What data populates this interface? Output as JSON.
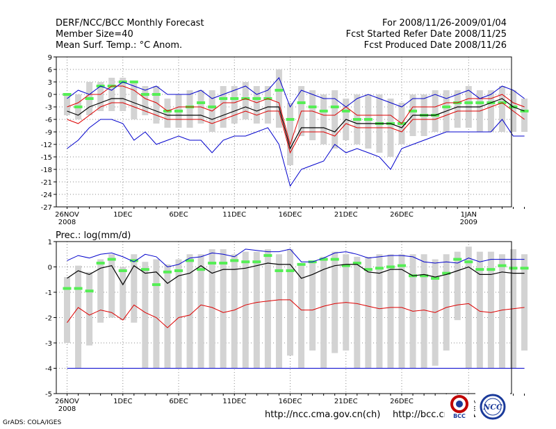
{
  "header": {
    "title": "DERF/NCC/BCC Monthly Forecast",
    "member_size": "Member Size=40",
    "variable": "Mean Surf. Temp.: °C Anom.",
    "period": "For 2008/11/26-2009/01/04",
    "started": "Fcst Started Refer Date 2008/11/25",
    "produced": "Fcst Produced Date 2008/11/26"
  },
  "footer": {
    "url1": "http://ncc.cma.gov.cn(ch)",
    "url2": "http://bcc.cma.gov.cn",
    "grads": "GrADS: COLA/IGES"
  },
  "logos": {
    "bcc": "BCC",
    "ncc": "NCC"
  },
  "colors": {
    "box": "#d3d3d3",
    "median": "#55ee55",
    "mean": "#000000",
    "inner": "#dd0000",
    "outer": "#0000cc",
    "grid": "#888888"
  },
  "chart_data": [
    {
      "type": "line",
      "title": "Mean Surf. Temp.: °C Anom.",
      "ylim": [
        -27,
        9
      ],
      "yticks": [
        9,
        6,
        3,
        0,
        -3,
        -6,
        -9,
        -12,
        -15,
        -18,
        -21,
        -24,
        -27
      ],
      "xtick_labels": [
        {
          "day": 0,
          "label": "26NOV",
          "sub": "2008"
        },
        {
          "day": 5,
          "label": "1DEC",
          "sub": ""
        },
        {
          "day": 10,
          "label": "6DEC",
          "sub": ""
        },
        {
          "day": 15,
          "label": "11DEC",
          "sub": ""
        },
        {
          "day": 20,
          "label": "16DEC",
          "sub": ""
        },
        {
          "day": 25,
          "label": "21DEC",
          "sub": ""
        },
        {
          "day": 30,
          "label": "26DEC",
          "sub": ""
        },
        {
          "day": 36,
          "label": "1JAN",
          "sub": "2009"
        }
      ],
      "series": [
        {
          "name": "max",
          "values": [
            -1,
            1,
            0,
            2,
            1,
            3,
            2,
            1,
            2,
            0,
            0,
            0,
            1,
            -1,
            0,
            1,
            2,
            0,
            1,
            4,
            -3,
            1,
            0,
            -1,
            -1,
            -3,
            -1,
            0,
            -1,
            -2,
            -3,
            -1,
            -1,
            0,
            -1,
            0,
            1,
            -1,
            0,
            2,
            1,
            -1
          ]
        },
        {
          "name": "upper",
          "values": [
            -3,
            -2,
            0,
            0,
            2,
            2,
            1,
            -1,
            -2,
            -4,
            -3,
            -3,
            -3,
            -4,
            -2,
            -2,
            -1,
            -2,
            -1,
            -2,
            -12,
            -4,
            -4,
            -5,
            -5,
            -3,
            -5,
            -5,
            -5,
            -5,
            -7,
            -3,
            -3,
            -3,
            -2,
            -2,
            -1,
            -1,
            -1,
            0,
            -2,
            -3
          ]
        },
        {
          "name": "mean",
          "values": [
            -4,
            -5,
            -3,
            -2,
            -1,
            -1,
            -2,
            -3,
            -4,
            -5,
            -5,
            -5,
            -5,
            -6,
            -5,
            -4,
            -3,
            -4,
            -3,
            -3,
            -13,
            -8,
            -8,
            -8,
            -9,
            -6,
            -7,
            -7,
            -7,
            -7,
            -8,
            -5,
            -5,
            -5,
            -4,
            -3,
            -3,
            -3,
            -2,
            -1,
            -3,
            -4
          ]
        },
        {
          "name": "lower",
          "values": [
            -6,
            -7,
            -5,
            -3,
            -2,
            -2,
            -3,
            -4,
            -5,
            -6,
            -6,
            -6,
            -6,
            -7,
            -6,
            -5,
            -4,
            -5,
            -4,
            -4,
            -14,
            -9,
            -9,
            -9,
            -10,
            -7,
            -8,
            -8,
            -8,
            -8,
            -9,
            -6,
            -6,
            -6,
            -5,
            -4,
            -4,
            -4,
            -3,
            -2,
            -4,
            -6
          ]
        },
        {
          "name": "min",
          "values": [
            -13,
            -11,
            -8,
            -6,
            -6,
            -7,
            -11,
            -9,
            -12,
            -11,
            -10,
            -11,
            -11,
            -14,
            -11,
            -10,
            -10,
            -9,
            -8,
            -12,
            -22,
            -18,
            -17,
            -16,
            -12,
            -14,
            -13,
            -14,
            -15,
            -18,
            -13,
            -12,
            -11,
            -10,
            -9,
            -9,
            -9,
            -9,
            -9,
            -6,
            -10,
            -10
          ]
        },
        {
          "name": "median",
          "values": [
            0,
            -3,
            -1,
            2,
            2,
            3,
            3,
            0,
            0,
            -4,
            -4,
            -3,
            -2,
            -3,
            -1,
            -1,
            -1,
            -1,
            -1,
            1,
            -6,
            -2,
            -3,
            -4,
            -3,
            -4,
            -6,
            -6,
            -7,
            -7,
            -7,
            -4,
            -5,
            -5,
            -3,
            -2,
            -2,
            -2,
            -2,
            -2,
            -3,
            -4
          ]
        },
        {
          "name": "box_top",
          "values": [
            0,
            0,
            3,
            3,
            4,
            4,
            3,
            2,
            2,
            -1,
            0,
            1,
            1,
            1,
            2,
            2,
            3,
            2,
            2,
            6,
            -2,
            2,
            1,
            0,
            1,
            -1,
            0,
            0,
            0,
            -1,
            -2,
            0,
            0,
            1,
            1,
            1,
            2,
            1,
            1,
            2,
            1,
            -1
          ]
        },
        {
          "name": "box_bottom",
          "values": [
            -5,
            -6,
            -5,
            -4,
            -4,
            -4,
            -6,
            -5,
            -7,
            -8,
            -8,
            -8,
            -7,
            -9,
            -8,
            -7,
            -6,
            -7,
            -7,
            -8,
            -17,
            -10,
            -11,
            -12,
            -13,
            -11,
            -12,
            -13,
            -14,
            -15,
            -12,
            -10,
            -10,
            -9,
            -9,
            -8,
            -8,
            -9,
            -9,
            -9,
            -9,
            -9
          ]
        }
      ]
    },
    {
      "type": "line",
      "title": "Prec.: log(mm/d)",
      "ylim": [
        -5,
        1
      ],
      "yticks": [
        1,
        0,
        -1,
        -2,
        -3,
        -4,
        -5
      ],
      "xtick_labels": [
        {
          "day": 0,
          "label": "26NOV",
          "sub": "2008"
        },
        {
          "day": 5,
          "label": "1DEC",
          "sub": ""
        },
        {
          "day": 10,
          "label": "6DEC",
          "sub": ""
        },
        {
          "day": 15,
          "label": "11DEC",
          "sub": ""
        },
        {
          "day": 20,
          "label": "16DEC",
          "sub": ""
        },
        {
          "day": 25,
          "label": "21DEC",
          "sub": ""
        },
        {
          "day": 30,
          "label": "26DEC",
          "sub": ""
        },
        {
          "day": 36,
          "label": "1JAN",
          "sub": "2009"
        }
      ],
      "series": [
        {
          "name": "max",
          "values": [
            0.25,
            0.45,
            0.35,
            0.5,
            0.55,
            0.4,
            0.2,
            0.5,
            0.4,
            0,
            0.1,
            0.35,
            0.4,
            0.55,
            0.5,
            0.4,
            0.7,
            0.65,
            0.6,
            0.6,
            0.7,
            0.2,
            0.2,
            0.35,
            0.55,
            0.6,
            0.5,
            0.35,
            0.4,
            0.45,
            0.45,
            0.4,
            0.2,
            0.15,
            0.2,
            0.15,
            0.35,
            0.2,
            0.3,
            0.3,
            0.3,
            0.3
          ]
        },
        {
          "name": "mean",
          "values": [
            -0.45,
            -0.15,
            -0.3,
            -0.05,
            0.05,
            -0.7,
            0.05,
            -0.25,
            -0.2,
            -0.65,
            -0.35,
            -0.25,
            0.05,
            -0.25,
            -0.1,
            -0.1,
            -0.05,
            0.05,
            0.15,
            0.1,
            0.1,
            -0.45,
            -0.3,
            -0.1,
            0.05,
            0.1,
            0.1,
            -0.2,
            -0.25,
            -0.1,
            -0.1,
            -0.35,
            -0.3,
            -0.4,
            -0.3,
            -0.15,
            0,
            -0.3,
            -0.3,
            -0.2,
            -0.25,
            -0.25
          ]
        },
        {
          "name": "lower",
          "values": [
            -2.2,
            -1.6,
            -1.9,
            -1.7,
            -1.8,
            -2.1,
            -1.5,
            -1.8,
            -2,
            -2.4,
            -2,
            -1.9,
            -1.5,
            -1.6,
            -1.8,
            -1.7,
            -1.5,
            -1.4,
            -1.35,
            -1.3,
            -1.3,
            -1.7,
            -1.7,
            -1.55,
            -1.45,
            -1.4,
            -1.45,
            -1.55,
            -1.65,
            -1.6,
            -1.6,
            -1.75,
            -1.7,
            -1.8,
            -1.6,
            -1.5,
            -1.45,
            -1.75,
            -1.8,
            -1.7,
            -1.65,
            -1.6
          ]
        },
        {
          "name": "min",
          "values": [
            -4,
            -4,
            -4,
            -4,
            -4,
            -4,
            -4,
            -4,
            -4,
            -4,
            -4,
            -4,
            -4,
            -4,
            -4,
            -4,
            -4,
            -4,
            -4,
            -4,
            -4,
            -4,
            -4,
            -4,
            -4,
            -4,
            -4,
            -4,
            -4,
            -4,
            -4,
            -4,
            -4,
            -4,
            -4,
            -4,
            -4,
            -4,
            -4,
            -4,
            -4,
            -4
          ]
        },
        {
          "name": "median",
          "values": [
            -0.85,
            -0.85,
            -0.95,
            0.15,
            0.3,
            -0.15,
            0.25,
            -0.1,
            -0.7,
            -0.2,
            -0.15,
            0.25,
            -0.1,
            0.15,
            0.15,
            0.25,
            0.2,
            0.2,
            0.45,
            -0.15,
            -0.15,
            0.1,
            0.2,
            0.3,
            0.3,
            0.05,
            0.15,
            -0.1,
            -0.05,
            0,
            0.05,
            -0.35,
            -0.35,
            -0.45,
            -0.25,
            0.3,
            0.2,
            -0.1,
            -0.1,
            0.05,
            -0.05,
            -0.05
          ]
        },
        {
          "name": "box_top",
          "values": [
            -0.4,
            0.05,
            -0.2,
            0.3,
            0.5,
            0,
            0.5,
            0.2,
            0.3,
            0.1,
            0.3,
            0.5,
            0.5,
            0.7,
            0.7,
            0.5,
            0.6,
            0.6,
            0.7,
            0.5,
            0.7,
            0.1,
            0.2,
            0.4,
            0.6,
            0.5,
            0.4,
            0.4,
            0.5,
            0.5,
            0.5,
            0.5,
            0.5,
            0.3,
            0.5,
            0.6,
            0.8,
            0.6,
            0.6,
            0.5,
            0.7,
            0.5
          ]
        },
        {
          "name": "box_bottom",
          "values": [
            -3,
            -4,
            -3.1,
            -2.2,
            -2,
            -2.1,
            -2.2,
            -4,
            -4,
            -4,
            -4,
            -4,
            -4,
            -4,
            -4,
            -4,
            -4,
            -4,
            -4,
            -4,
            -3.5,
            -4,
            -3.3,
            -4,
            -3.4,
            -3.3,
            -4,
            -4,
            -4,
            -4,
            -4,
            -4,
            -4,
            -3.9,
            -3.3,
            -2.1,
            -4,
            -4,
            -4,
            -4,
            -4,
            -3.3
          ]
        }
      ]
    }
  ]
}
